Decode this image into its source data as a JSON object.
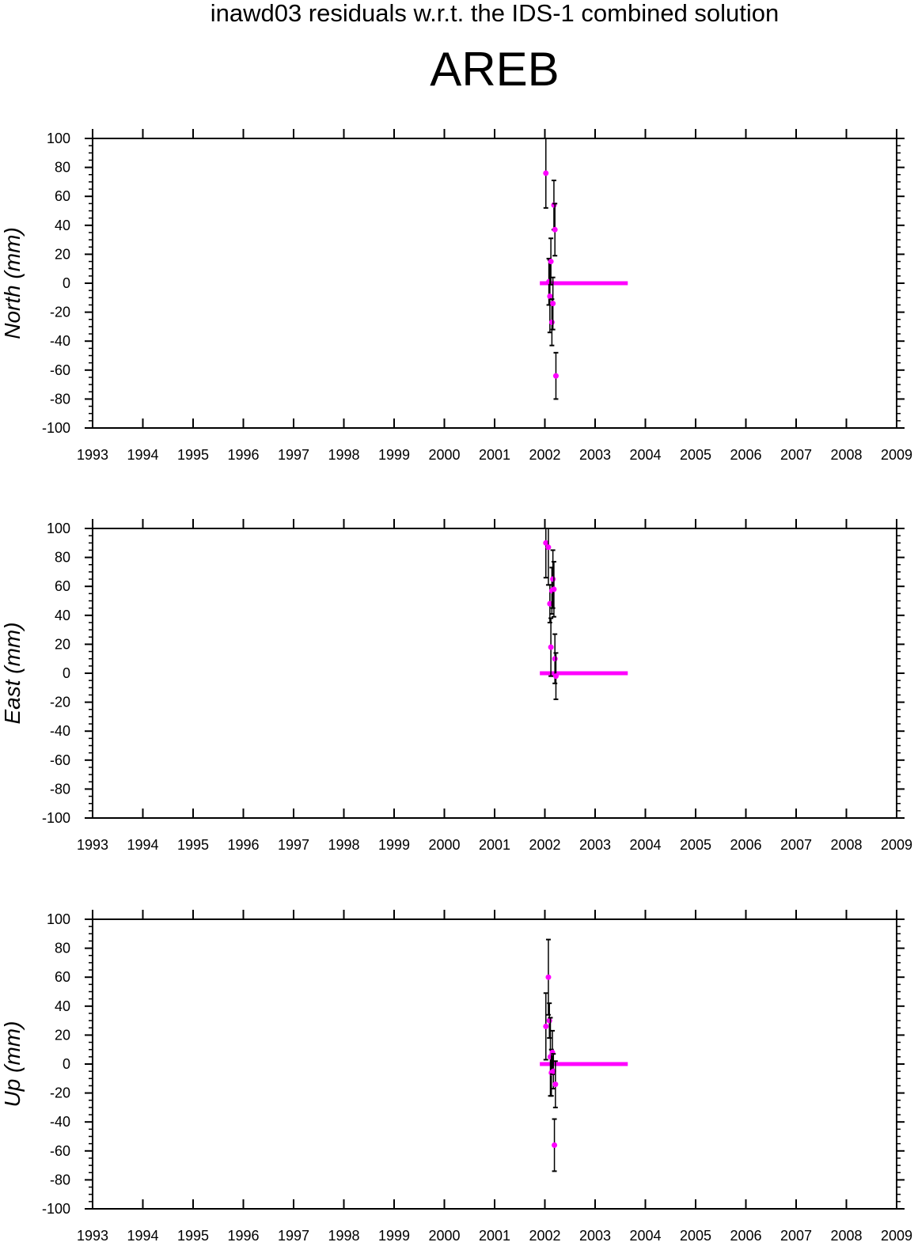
{
  "page": {
    "title": "inawd03 residuals w.r.t. the IDS-1 combined solution",
    "station": "AREB"
  },
  "colors": {
    "point": "#ff00ff",
    "error_bar": "#000000",
    "axis": "#000000",
    "background": "#ffffff"
  },
  "chart_data": [
    {
      "type": "scatter",
      "ylabel": "North (mm)",
      "xlim": [
        1993,
        2009
      ],
      "ylim": [
        -100,
        100
      ],
      "x_ticks": [
        "1993",
        "1994",
        "1995",
        "1996",
        "1997",
        "1998",
        "1999",
        "2000",
        "2001",
        "2002",
        "2003",
        "2004",
        "2005",
        "2006",
        "2007",
        "2008",
        "2009"
      ],
      "y_ticks": [
        "100",
        "80",
        "60",
        "40",
        "20",
        "0",
        "-20",
        "-40",
        "-60",
        "-80",
        "-100"
      ],
      "zero_line": {
        "x_start": 2001.9,
        "x_end": 2003.65,
        "y": 0
      },
      "points": [
        {
          "x": 2002.02,
          "y": 76,
          "err": 24
        },
        {
          "x": 2002.08,
          "y": 1,
          "err": 16
        },
        {
          "x": 2002.1,
          "y": -9,
          "err": 25
        },
        {
          "x": 2002.12,
          "y": 15,
          "err": 16
        },
        {
          "x": 2002.14,
          "y": -27,
          "err": 16
        },
        {
          "x": 2002.16,
          "y": -14,
          "err": 18
        },
        {
          "x": 2002.18,
          "y": 54,
          "err": 17
        },
        {
          "x": 2002.2,
          "y": 37,
          "err": 18
        },
        {
          "x": 2002.22,
          "y": -64,
          "err": 16
        }
      ]
    },
    {
      "type": "scatter",
      "ylabel": "East (mm)",
      "xlim": [
        1993,
        2009
      ],
      "ylim": [
        -100,
        100
      ],
      "x_ticks": [
        "1993",
        "1994",
        "1995",
        "1996",
        "1997",
        "1998",
        "1999",
        "2000",
        "2001",
        "2002",
        "2003",
        "2004",
        "2005",
        "2006",
        "2007",
        "2008",
        "2009"
      ],
      "y_ticks": [
        "100",
        "80",
        "60",
        "40",
        "20",
        "0",
        "-20",
        "-40",
        "-60",
        "-80",
        "-100"
      ],
      "zero_line": {
        "x_start": 2001.9,
        "x_end": 2003.65,
        "y": 0
      },
      "points": [
        {
          "x": 2002.02,
          "y": 90,
          "err": 24
        },
        {
          "x": 2002.07,
          "y": 87,
          "err": 26
        },
        {
          "x": 2002.1,
          "y": 48,
          "err": 13
        },
        {
          "x": 2002.12,
          "y": 18,
          "err": 20
        },
        {
          "x": 2002.14,
          "y": 57,
          "err": 16
        },
        {
          "x": 2002.16,
          "y": 65,
          "err": 20
        },
        {
          "x": 2002.18,
          "y": 58,
          "err": 19
        },
        {
          "x": 2002.2,
          "y": 10,
          "err": 17
        },
        {
          "x": 2002.22,
          "y": -2,
          "err": 16
        }
      ]
    },
    {
      "type": "scatter",
      "ylabel": "Up (mm)",
      "xlim": [
        1993,
        2009
      ],
      "ylim": [
        -100,
        100
      ],
      "x_ticks": [
        "1993",
        "1994",
        "1995",
        "1996",
        "1997",
        "1998",
        "1999",
        "2000",
        "2001",
        "2002",
        "2003",
        "2004",
        "2005",
        "2006",
        "2007",
        "2008",
        "2009"
      ],
      "y_ticks": [
        "100",
        "80",
        "60",
        "40",
        "20",
        "0",
        "-20",
        "-40",
        "-60",
        "-80",
        "-100"
      ],
      "zero_line": {
        "x_start": 2001.9,
        "x_end": 2003.65,
        "y": 0
      },
      "points": [
        {
          "x": 2002.02,
          "y": 26,
          "err": 23
        },
        {
          "x": 2002.07,
          "y": 60,
          "err": 26
        },
        {
          "x": 2002.09,
          "y": 30,
          "err": 12
        },
        {
          "x": 2002.11,
          "y": 5,
          "err": 27
        },
        {
          "x": 2002.13,
          "y": -6,
          "err": 16
        },
        {
          "x": 2002.15,
          "y": 8,
          "err": 15
        },
        {
          "x": 2002.17,
          "y": -5,
          "err": 12
        },
        {
          "x": 2002.19,
          "y": -56,
          "err": 18
        },
        {
          "x": 2002.21,
          "y": -14,
          "err": 16
        }
      ]
    }
  ]
}
